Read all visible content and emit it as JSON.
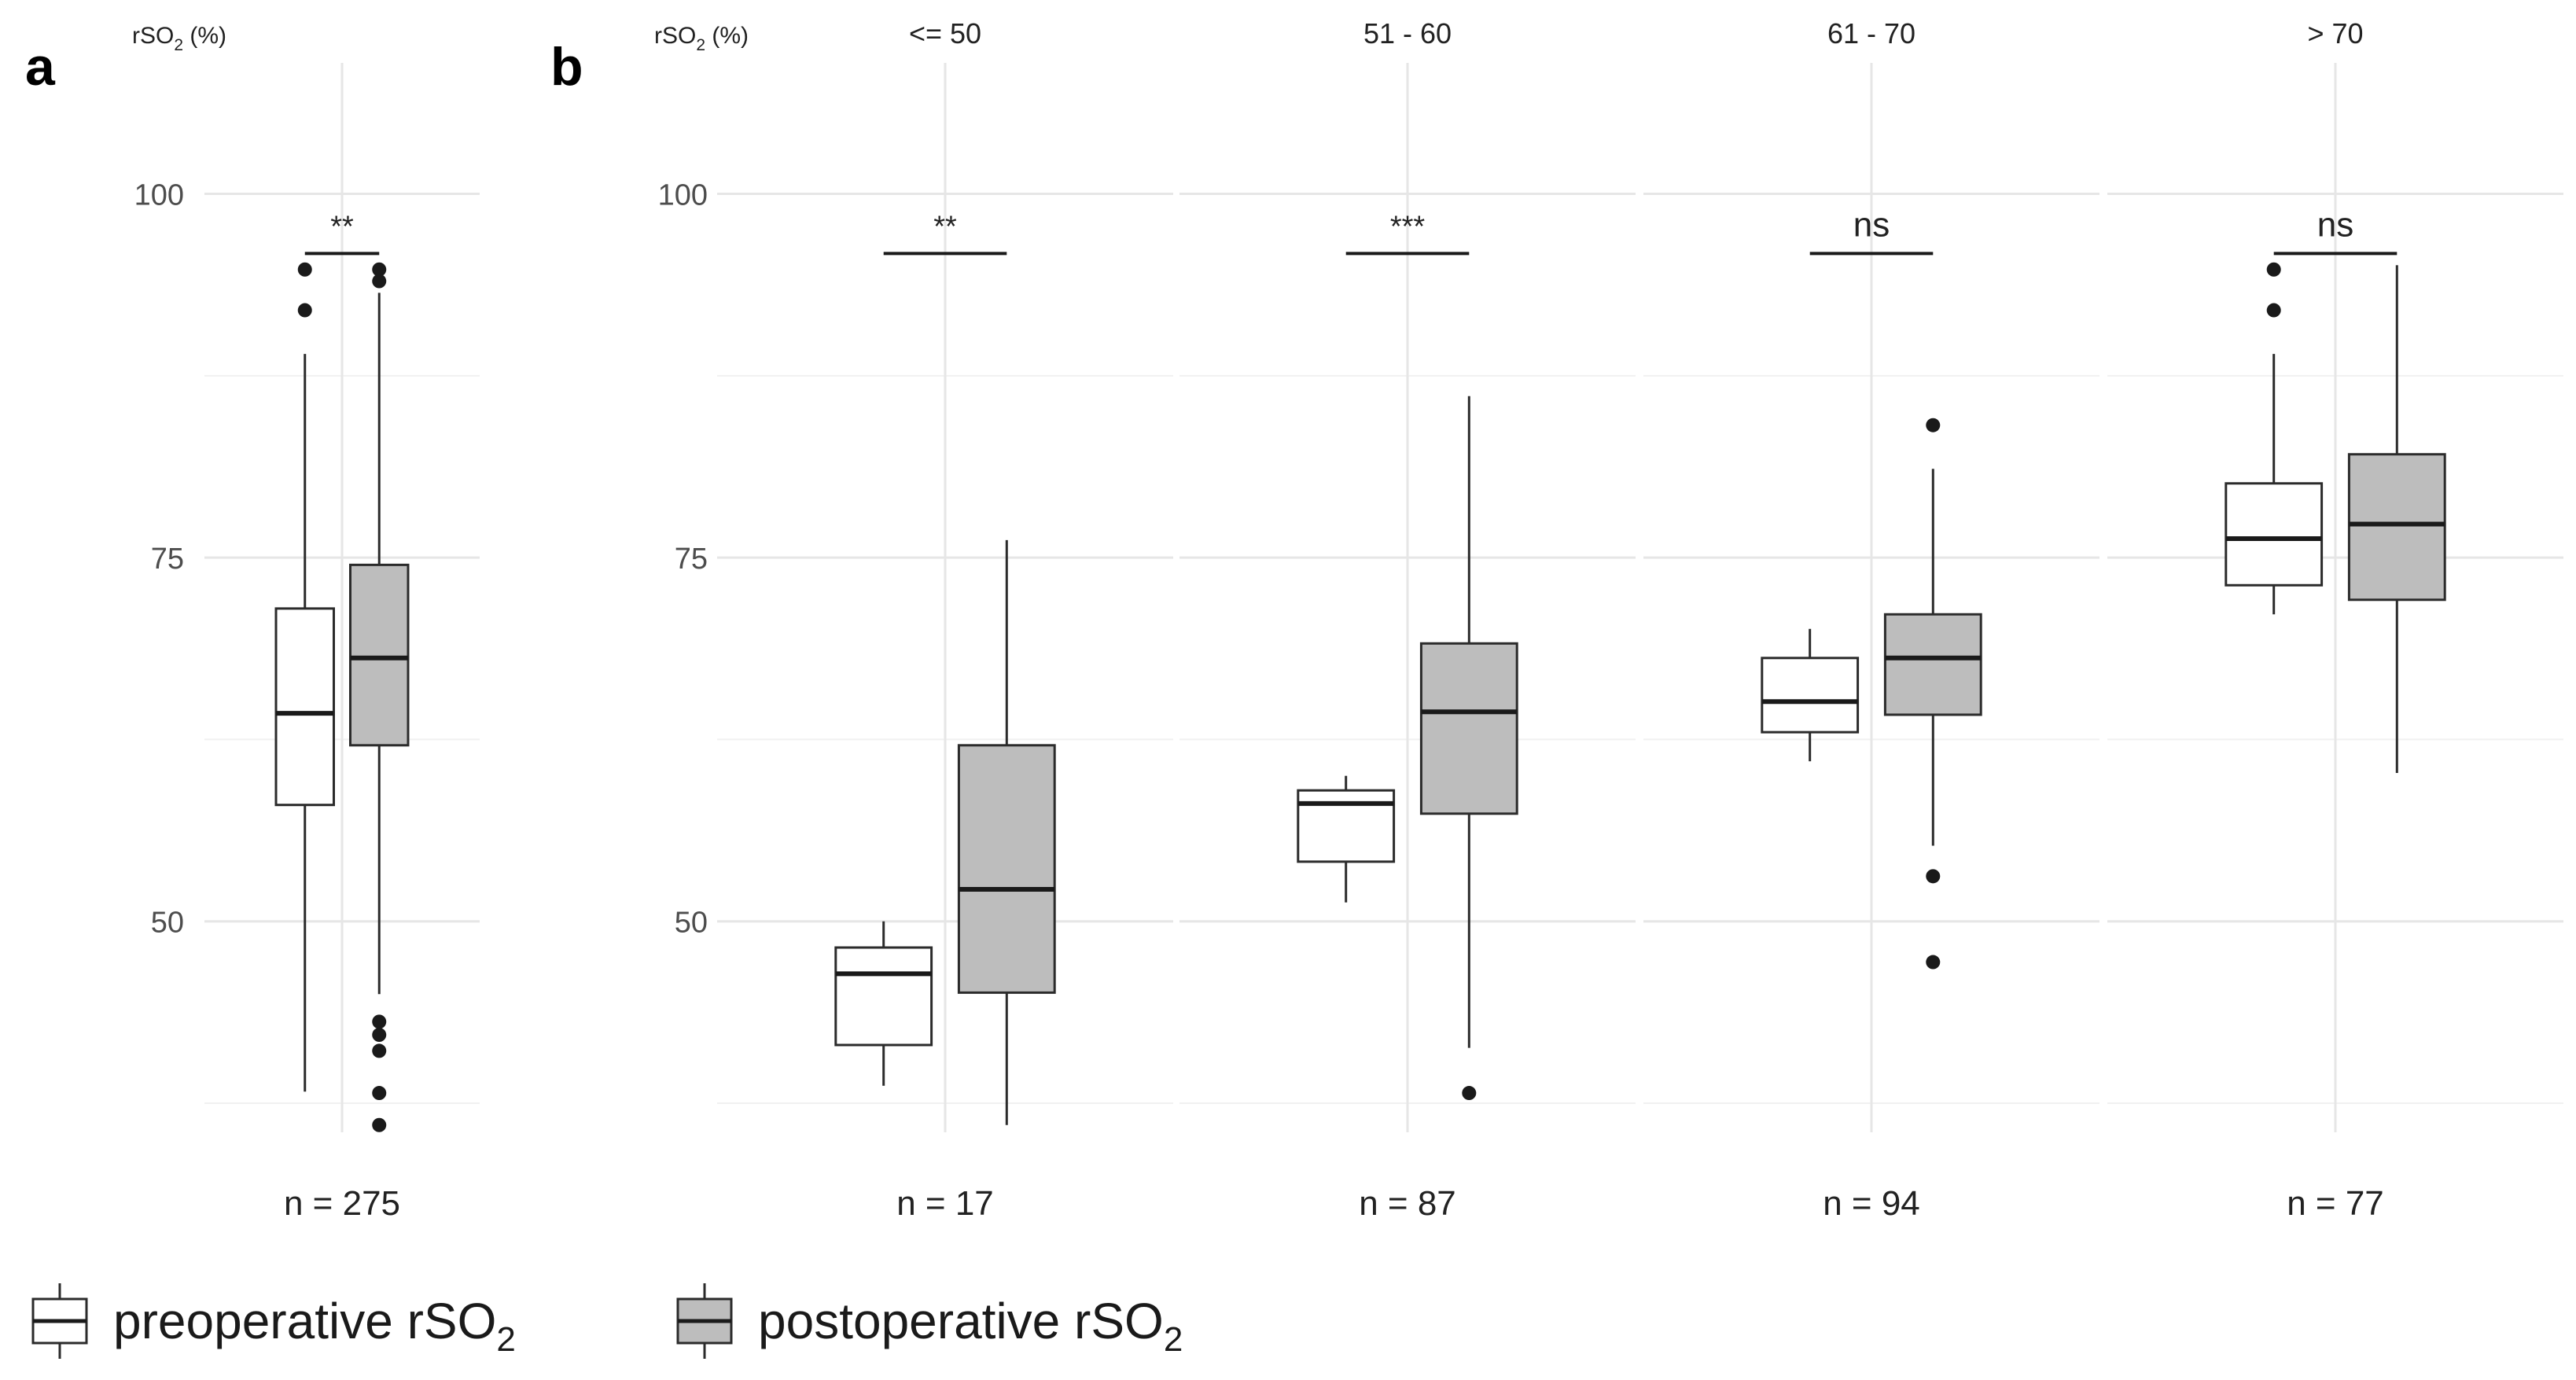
{
  "figure": {
    "panel_labels": [
      "a",
      "b"
    ],
    "legend": [
      {
        "label": "preoperative rSO",
        "sub": "2",
        "fill": "#ffffff"
      },
      {
        "label": "postoperative rSO",
        "sub": "2",
        "fill": "#bdbdbd"
      }
    ]
  },
  "chart_data": [
    {
      "type": "box",
      "panel": "a",
      "title": "",
      "ylabel": "rSO",
      "ylabel_sub": "2",
      "ylabel_unit": " (%)",
      "ylim": [
        35.5,
        109
      ],
      "yticks": [
        50,
        75,
        100
      ],
      "minor_yticks": [
        37.5,
        62.5,
        87.5
      ],
      "grid": true,
      "groups": [
        {
          "facet": "",
          "n_label": "n = 275",
          "significance": "**",
          "bracket_y": 95.9,
          "boxes": [
            {
              "series": "preoperative rSO2",
              "q1": 58,
              "median": 64.3,
              "q3": 71.5,
              "whisker_low": 38.3,
              "whisker_high": 89,
              "outliers": [
                92,
                94.8
              ]
            },
            {
              "series": "postoperative rSO2",
              "q1": 62.1,
              "median": 68.1,
              "q3": 74.5,
              "whisker_low": 45,
              "whisker_high": 93.2,
              "outliers": [
                36,
                38.2,
                41.1,
                42.2,
                43.1,
                94,
                94.8
              ]
            }
          ]
        }
      ]
    },
    {
      "type": "box",
      "panel": "b",
      "title": "",
      "ylabel": "rSO",
      "ylabel_sub": "2",
      "ylabel_unit": " (%)",
      "ylim": [
        35.5,
        109
      ],
      "yticks": [
        50,
        75,
        100
      ],
      "minor_yticks": [
        37.5,
        62.5,
        87.5
      ],
      "grid": true,
      "groups": [
        {
          "facet": "<= 50",
          "n_label": "n = 17",
          "significance": "**",
          "bracket_y": 95.9,
          "boxes": [
            {
              "series": "preoperative rSO2",
              "q1": 41.5,
              "median": 46.4,
              "q3": 48.2,
              "whisker_low": 38.7,
              "whisker_high": 50,
              "outliers": []
            },
            {
              "series": "postoperative rSO2",
              "q1": 45.1,
              "median": 52.2,
              "q3": 62.1,
              "whisker_low": 36,
              "whisker_high": 76.2,
              "outliers": []
            }
          ]
        },
        {
          "facet": "51 - 60",
          "n_label": "n = 87",
          "significance": "***",
          "bracket_y": 95.9,
          "boxes": [
            {
              "series": "preoperative rSO2",
              "q1": 54.1,
              "median": 58.1,
              "q3": 59,
              "whisker_low": 51.3,
              "whisker_high": 60,
              "outliers": []
            },
            {
              "series": "postoperative rSO2",
              "q1": 57.4,
              "median": 64.4,
              "q3": 69.1,
              "whisker_low": 41.3,
              "whisker_high": 86.1,
              "outliers": [
                38.2
              ]
            }
          ]
        },
        {
          "facet": "61 - 70",
          "n_label": "n = 94",
          "significance": "ns",
          "bracket_y": 95.9,
          "boxes": [
            {
              "series": "preoperative rSO2",
              "q1": 63,
              "median": 65.1,
              "q3": 68.1,
              "whisker_low": 61,
              "whisker_high": 70.1,
              "outliers": []
            },
            {
              "series": "postoperative rSO2",
              "q1": 64.2,
              "median": 68.1,
              "q3": 71.1,
              "whisker_low": 55.2,
              "whisker_high": 81.1,
              "outliers": [
                47.2,
                53.1,
                84.1
              ]
            }
          ]
        },
        {
          "facet": "> 70",
          "n_label": "n = 77",
          "significance": "ns",
          "bracket_y": 95.9,
          "boxes": [
            {
              "series": "preoperative rSO2",
              "q1": 73.1,
              "median": 76.3,
              "q3": 80.1,
              "whisker_low": 71.1,
              "whisker_high": 89,
              "outliers": [
                92,
                94.8
              ]
            },
            {
              "series": "postoperative rSO2",
              "q1": 72.1,
              "median": 77.3,
              "q3": 82.1,
              "whisker_low": 60.2,
              "whisker_high": 95.1,
              "outliers": []
            }
          ]
        }
      ]
    }
  ]
}
